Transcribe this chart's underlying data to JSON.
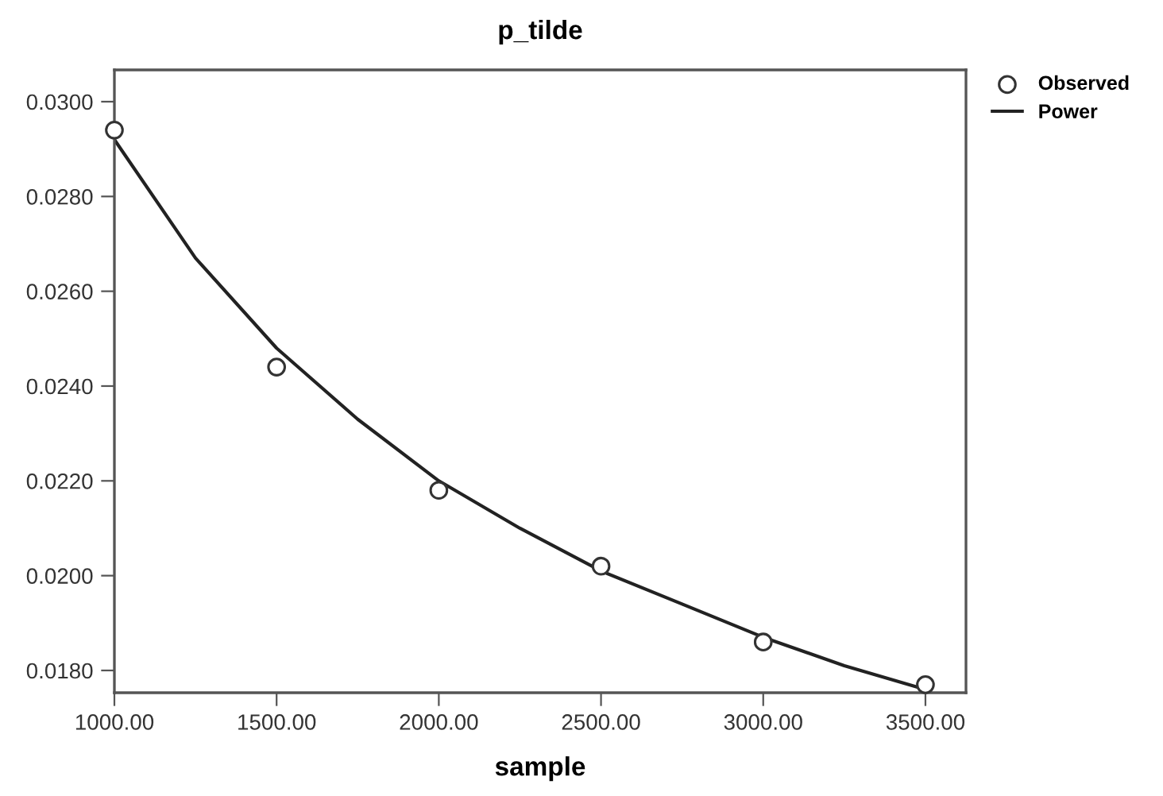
{
  "chart_data": {
    "type": "scatter",
    "title": "p_tilde",
    "xlabel": "sample",
    "xlim": [
      1000,
      3625
    ],
    "ylim": [
      0.01753,
      0.03067
    ],
    "xticks": [
      {
        "value": 1000,
        "label": "1000.00"
      },
      {
        "value": 1500,
        "label": "1500.00"
      },
      {
        "value": 2000,
        "label": "2000.00"
      },
      {
        "value": 2500,
        "label": "2500.00"
      },
      {
        "value": 3000,
        "label": "3000.00"
      },
      {
        "value": 3500,
        "label": "3500.00"
      }
    ],
    "yticks": [
      {
        "value": 0.018,
        "label": "0.0180"
      },
      {
        "value": 0.02,
        "label": "0.0200"
      },
      {
        "value": 0.022,
        "label": "0.0220"
      },
      {
        "value": 0.024,
        "label": "0.0240"
      },
      {
        "value": 0.026,
        "label": "0.0260"
      },
      {
        "value": 0.028,
        "label": "0.0280"
      },
      {
        "value": 0.03,
        "label": "0.0300"
      }
    ],
    "grid": false,
    "legend": "top right",
    "series": [
      {
        "name": "Observed",
        "marker": "circle",
        "color": "#333333",
        "x": [
          1000,
          1500,
          2000,
          2500,
          3000,
          3500
        ],
        "values": [
          0.0294,
          0.0244,
          0.0218,
          0.0202,
          0.0186,
          0.0177
        ]
      },
      {
        "name": "Power",
        "type": "line",
        "marker": "none",
        "line_style": "solid",
        "color": "#222222",
        "x": [
          1000,
          1250,
          1500,
          1750,
          2000,
          2250,
          2500,
          2750,
          3000,
          3250,
          3500
        ],
        "values": [
          0.0292,
          0.0267,
          0.0248,
          0.0233,
          0.022,
          0.021,
          0.0201,
          0.0194,
          0.0187,
          0.0181,
          0.0176
        ]
      }
    ]
  }
}
